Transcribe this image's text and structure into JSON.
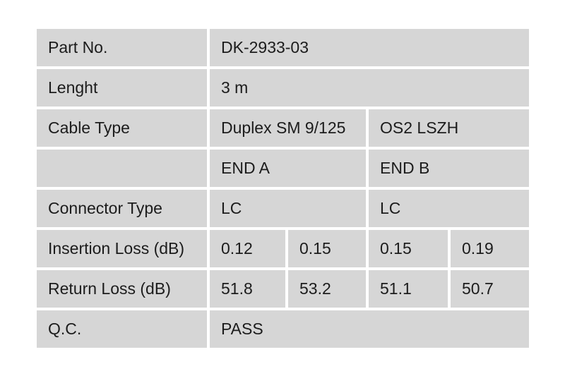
{
  "document": {
    "type": "cable-qc-test-report",
    "colors": {
      "page_background": "#ffffff",
      "cell_background": "#d6d6d6",
      "grid_gap": "#ffffff",
      "text": "#1c1c1c"
    },
    "table": {
      "rows": {
        "part_no": {
          "label": "Part No.",
          "value": "DK-2933-03"
        },
        "length": {
          "label": "Lenght",
          "value": "3 m"
        },
        "cable_type": {
          "label": "Cable Type",
          "value_a": "Duplex SM 9/125",
          "value_b": "OS2 LSZH"
        },
        "ends_header": {
          "label": "",
          "value_a": "END A",
          "value_b": "END B"
        },
        "connector_type": {
          "label": "Connector Type",
          "value_a": "LC",
          "value_b": "LC"
        },
        "insertion_loss": {
          "label": "Insertion Loss (dB)",
          "end_a_1": "0.12",
          "end_a_2": "0.15",
          "end_b_1": "0.15",
          "end_b_2": "0.19"
        },
        "return_loss": {
          "label": "Return Loss (dB)",
          "end_a_1": "51.8",
          "end_a_2": "53.2",
          "end_b_1": "51.1",
          "end_b_2": "50.7"
        },
        "qc": {
          "label": "Q.C.",
          "value": "PASS"
        }
      }
    }
  }
}
